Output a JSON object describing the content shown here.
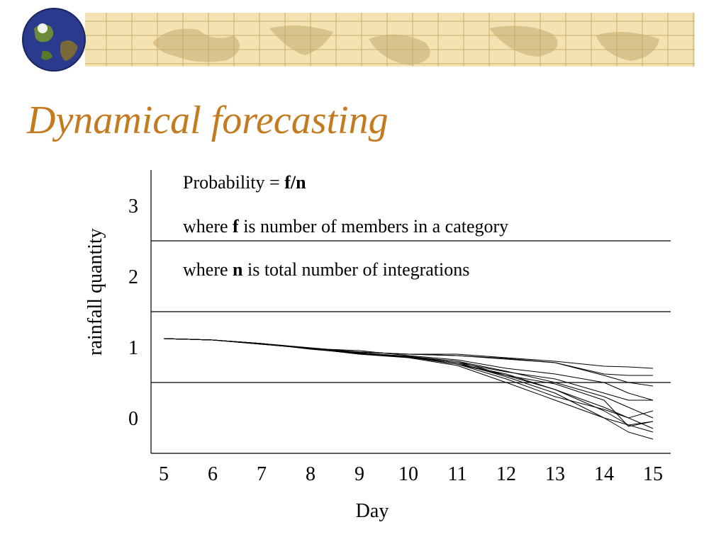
{
  "slide": {
    "title": "Dynamical forecasting"
  },
  "colors": {
    "title": "#c47a1f",
    "banner_bg": "#f3e3b3",
    "banner_map": "#d9c38c",
    "banner_grid": "#c9ad6c"
  },
  "icons": {
    "banner_globe": "globe-icon"
  },
  "annotation": {
    "line1_prefix": "Probability = ",
    "line1_bold": "f/n",
    "line2_prefix": "where ",
    "line2_bold": "f",
    "line2_suffix": " is number of members in a category",
    "line3_prefix": "where ",
    "line3_bold": "n",
    "line3_suffix": " is total number of integrations"
  },
  "chart_data": {
    "type": "line",
    "title": "",
    "xlabel": "Day",
    "ylabel": "rainfall quantity",
    "xlim": [
      5,
      15
    ],
    "ylim": [
      -0.5,
      3.5
    ],
    "x_ticks": [
      "5",
      "6",
      "7",
      "8",
      "9",
      "10",
      "11",
      "12",
      "13",
      "14",
      "15"
    ],
    "y_ticks": [
      "0",
      "1",
      "2",
      "3"
    ],
    "category_boundaries": [
      0.5,
      1.5,
      2.5
    ],
    "grid": false,
    "legend": "none",
    "series": [
      {
        "x": [
          5,
          6,
          7,
          8,
          9,
          10,
          11,
          12,
          13,
          14,
          14.5,
          15
        ],
        "y": [
          1.12,
          1.1,
          1.05,
          0.98,
          0.92,
          0.86,
          0.76,
          0.55,
          0.3,
          0.12,
          0.0,
          -0.15
        ]
      },
      {
        "x": [
          5,
          6,
          7,
          8,
          9,
          10,
          11,
          12,
          13,
          14,
          14.5,
          15
        ],
        "y": [
          1.12,
          1.1,
          1.05,
          0.98,
          0.92,
          0.87,
          0.8,
          0.6,
          0.4,
          0.1,
          -0.1,
          -0.2
        ]
      },
      {
        "x": [
          5,
          6,
          7,
          8,
          9,
          10,
          11,
          12,
          13,
          14,
          14.5,
          15
        ],
        "y": [
          1.12,
          1.1,
          1.05,
          0.98,
          0.92,
          0.86,
          0.78,
          0.58,
          0.35,
          0.0,
          -0.2,
          -0.3
        ]
      },
      {
        "x": [
          5,
          6,
          7,
          8,
          9,
          10,
          11,
          12,
          13,
          14,
          14.5,
          15
        ],
        "y": [
          1.12,
          1.1,
          1.04,
          0.98,
          0.9,
          0.85,
          0.74,
          0.5,
          0.25,
          0.0,
          -0.1,
          -0.05
        ]
      },
      {
        "x": [
          5,
          6,
          7,
          8,
          9,
          10,
          11,
          12,
          13,
          14,
          14.5,
          15
        ],
        "y": [
          1.12,
          1.1,
          1.05,
          0.98,
          0.9,
          0.86,
          0.78,
          0.65,
          0.55,
          0.35,
          0.25,
          0.25
        ]
      },
      {
        "x": [
          5,
          6,
          7,
          8,
          9,
          10,
          11,
          12,
          13,
          14,
          14.5,
          15
        ],
        "y": [
          1.12,
          1.1,
          1.04,
          0.98,
          0.95,
          0.88,
          0.82,
          0.7,
          0.62,
          0.5,
          0.35,
          0.25
        ]
      },
      {
        "x": [
          5,
          6,
          7,
          8,
          9,
          10,
          11,
          12,
          13,
          14,
          14.5,
          15
        ],
        "y": [
          1.12,
          1.1,
          1.05,
          0.98,
          0.93,
          0.9,
          0.88,
          0.83,
          0.78,
          0.6,
          0.5,
          0.45
        ]
      },
      {
        "x": [
          5,
          6,
          7,
          8,
          9,
          10,
          11,
          12,
          13,
          14,
          14.5,
          15
        ],
        "y": [
          1.12,
          1.1,
          1.05,
          0.99,
          0.93,
          0.9,
          0.9,
          0.85,
          0.8,
          0.73,
          0.72,
          0.7
        ]
      },
      {
        "x": [
          5,
          6,
          7,
          8,
          9,
          10,
          11,
          12,
          13,
          14,
          14.5,
          15
        ],
        "y": [
          1.12,
          1.1,
          1.05,
          0.98,
          0.93,
          0.9,
          0.88,
          0.84,
          0.78,
          0.62,
          0.6,
          0.6
        ]
      },
      {
        "x": [
          5,
          6,
          7,
          8,
          9,
          10,
          11,
          12,
          13,
          14,
          14.5,
          15
        ],
        "y": [
          1.12,
          1.1,
          1.05,
          0.98,
          0.92,
          0.86,
          0.76,
          0.62,
          0.4,
          0.15,
          0.0,
          0.1
        ]
      },
      {
        "x": [
          5,
          6,
          7,
          8,
          9,
          10,
          11,
          12,
          13,
          14,
          14.5,
          15
        ],
        "y": [
          1.12,
          1.1,
          1.04,
          0.98,
          0.92,
          0.86,
          0.8,
          0.66,
          0.5,
          0.3,
          0.15,
          0.0
        ]
      },
      {
        "x": [
          5,
          6,
          7,
          8,
          9,
          10,
          11,
          12,
          13,
          14,
          14.5,
          15
        ],
        "y": [
          1.12,
          1.1,
          1.05,
          0.97,
          0.91,
          0.86,
          0.76,
          0.6,
          0.48,
          0.25,
          -0.12,
          -0.05
        ]
      }
    ]
  }
}
